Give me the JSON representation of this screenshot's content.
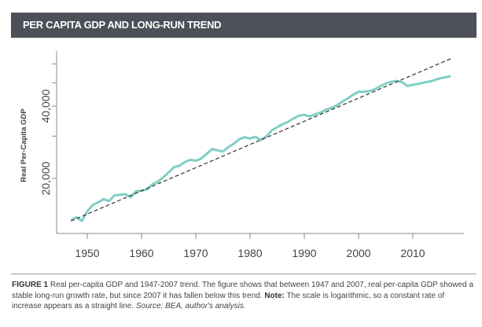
{
  "header": {
    "title": "PER CAPITA GDP AND LONG-RUN TREND"
  },
  "caption": {
    "label": "FIGURE 1",
    "text": " Real per-capita GDP and 1947-2007 trend. The figure shows that between 1947 and 2007, real per-capita GDP showed a stable long-run growth rate, but since 2007 it has fallen below this trend. ",
    "note_label": "Note:",
    "note_text": " The scale is logarithmic, so a constant rate of increase appears as a straight line. ",
    "source": "Source: BEA, author's analysis."
  },
  "colors": {
    "series": "#7fcfc6",
    "trend": "#333333",
    "axis": "#888888",
    "header": "#4d5058"
  },
  "chart_data": {
    "type": "line",
    "title": "PER CAPITA GDP AND LONG-RUN TREND",
    "xlabel": "",
    "ylabel": "Real Per-Capita GDP",
    "yscale": "log",
    "xlim": [
      1944,
      2019
    ],
    "ylim": [
      11500,
      70000
    ],
    "x_ticks": [
      1950,
      1960,
      1970,
      1980,
      1990,
      2000,
      2010
    ],
    "x_tick_labels": [
      "1950",
      "1960",
      "1970",
      "1980",
      "1990",
      "2000",
      "2010"
    ],
    "y_ticks": [
      20000,
      30000,
      40000,
      50000,
      60000
    ],
    "y_tick_labels": [
      "20,000",
      "",
      "40,000",
      "",
      ""
    ],
    "grid": false,
    "series": [
      {
        "name": "Real per-capita GDP",
        "style": "solid",
        "x": [
          1947,
          1948,
          1949,
          1950,
          1951,
          1952,
          1953,
          1954,
          1955,
          1956,
          1957,
          1958,
          1959,
          1960,
          1961,
          1962,
          1963,
          1964,
          1965,
          1966,
          1967,
          1968,
          1969,
          1970,
          1971,
          1972,
          1973,
          1974,
          1975,
          1976,
          1977,
          1978,
          1979,
          1980,
          1981,
          1982,
          1983,
          1984,
          1985,
          1986,
          1987,
          1988,
          1989,
          1990,
          1991,
          1992,
          1993,
          1994,
          1995,
          1996,
          1997,
          1998,
          1999,
          2000,
          2001,
          2002,
          2003,
          2004,
          2005,
          2006,
          2007,
          2008,
          2009,
          2010,
          2011,
          2012,
          2013,
          2014,
          2015,
          2016,
          2017
        ],
        "values": [
          13400,
          13800,
          13300,
          14600,
          15500,
          15900,
          16400,
          16100,
          17000,
          17100,
          17200,
          16700,
          17700,
          17800,
          18000,
          18900,
          19400,
          20200,
          21200,
          22300,
          22600,
          23400,
          23900,
          23700,
          24200,
          25300,
          26500,
          26200,
          25900,
          27000,
          27900,
          29100,
          29700,
          29300,
          29800,
          28900,
          29900,
          31700,
          32700,
          33600,
          34400,
          35500,
          36500,
          36800,
          36200,
          37000,
          37600,
          38700,
          39300,
          40300,
          41700,
          43100,
          44600,
          45900,
          45900,
          46200,
          47000,
          48400,
          49600,
          50500,
          50900,
          50400,
          48500,
          49100,
          49500,
          50100,
          50600,
          51300,
          52200,
          52700,
          53400
        ]
      },
      {
        "name": "1947-2007 trend",
        "style": "dashed",
        "x": [
          1947,
          2017
        ],
        "values": [
          13300,
          63000
        ]
      }
    ]
  }
}
